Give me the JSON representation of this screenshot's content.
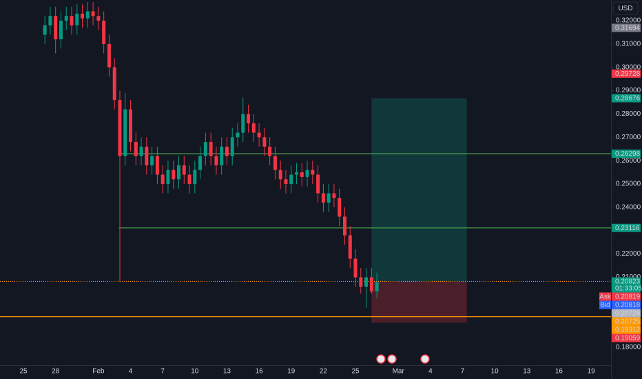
{
  "chart_data": {
    "type": "candlestick",
    "currency": "USD",
    "x": [
      2,
      2.5,
      3,
      3.5,
      4,
      4.5,
      5,
      5.5,
      6,
      6.5,
      7,
      7.5,
      8,
      8.5,
      9,
      9.5,
      10,
      10.5,
      11,
      11.5,
      12,
      12.5,
      13,
      13.5,
      14,
      14.5,
      15,
      15.5,
      16,
      16.5,
      17,
      17.5,
      18,
      18.5,
      19,
      19.5,
      20,
      20.5,
      21,
      21.5,
      22,
      22.5,
      23,
      23.5,
      24,
      24.5,
      25,
      25.5,
      26,
      26.5,
      27,
      27.5,
      28,
      28.5,
      29,
      29.5,
      30,
      30.5,
      31,
      31.5,
      32,
      32.5,
      33
    ],
    "open": [
      0.314,
      0.318,
      0.322,
      0.312,
      0.32,
      0.322,
      0.318,
      0.323,
      0.321,
      0.324,
      0.322,
      0.32,
      0.31,
      0.3,
      0.286,
      0.262,
      0.282,
      0.268,
      0.262,
      0.266,
      0.258,
      0.262,
      0.254,
      0.25,
      0.256,
      0.252,
      0.258,
      0.254,
      0.25,
      0.256,
      0.262,
      0.268,
      0.262,
      0.258,
      0.266,
      0.262,
      0.27,
      0.272,
      0.28,
      0.276,
      0.272,
      0.27,
      0.266,
      0.262,
      0.256,
      0.252,
      0.25,
      0.254,
      0.255,
      0.253,
      0.256,
      0.254,
      0.246,
      0.242,
      0.246,
      0.244,
      0.236,
      0.228,
      0.218,
      0.21,
      0.206,
      0.21,
      0.204
    ],
    "high": [
      0.322,
      0.326,
      0.326,
      0.324,
      0.326,
      0.326,
      0.327,
      0.327,
      0.328,
      0.328,
      0.326,
      0.324,
      0.314,
      0.304,
      0.29,
      0.289,
      0.286,
      0.272,
      0.27,
      0.27,
      0.266,
      0.266,
      0.258,
      0.26,
      0.26,
      0.262,
      0.262,
      0.258,
      0.26,
      0.266,
      0.272,
      0.272,
      0.266,
      0.27,
      0.27,
      0.274,
      0.276,
      0.287,
      0.284,
      0.28,
      0.276,
      0.274,
      0.27,
      0.266,
      0.26,
      0.256,
      0.258,
      0.259,
      0.259,
      0.26,
      0.26,
      0.258,
      0.25,
      0.25,
      0.25,
      0.248,
      0.24,
      0.232,
      0.222,
      0.214,
      0.214,
      0.214,
      0.212
    ],
    "low": [
      0.31,
      0.314,
      0.306,
      0.308,
      0.316,
      0.314,
      0.314,
      0.317,
      0.317,
      0.318,
      0.316,
      0.306,
      0.296,
      0.282,
      0.208,
      0.258,
      0.264,
      0.258,
      0.258,
      0.254,
      0.254,
      0.25,
      0.246,
      0.246,
      0.248,
      0.248,
      0.25,
      0.246,
      0.246,
      0.252,
      0.258,
      0.258,
      0.254,
      0.254,
      0.258,
      0.258,
      0.266,
      0.268,
      0.272,
      0.268,
      0.266,
      0.262,
      0.258,
      0.252,
      0.248,
      0.246,
      0.246,
      0.25,
      0.249,
      0.249,
      0.25,
      0.242,
      0.238,
      0.238,
      0.24,
      0.232,
      0.224,
      0.214,
      0.206,
      0.203,
      0.197,
      0.203,
      0.201
    ],
    "close": [
      0.318,
      0.322,
      0.312,
      0.32,
      0.322,
      0.318,
      0.323,
      0.321,
      0.324,
      0.322,
      0.32,
      0.31,
      0.3,
      0.286,
      0.262,
      0.282,
      0.268,
      0.262,
      0.266,
      0.258,
      0.262,
      0.254,
      0.25,
      0.256,
      0.252,
      0.258,
      0.254,
      0.25,
      0.256,
      0.262,
      0.268,
      0.262,
      0.258,
      0.266,
      0.262,
      0.27,
      0.272,
      0.28,
      0.276,
      0.272,
      0.27,
      0.266,
      0.262,
      0.256,
      0.252,
      0.25,
      0.254,
      0.255,
      0.253,
      0.256,
      0.254,
      0.246,
      0.242,
      0.246,
      0.244,
      0.236,
      0.228,
      0.218,
      0.21,
      0.206,
      0.21,
      0.204,
      0.208
    ],
    "up_color": "#089981",
    "down_color": "#f23645",
    "xlim": [
      -2.19,
      54.86
    ],
    "ylim": [
      0.17233,
      0.32886
    ],
    "xticks": [
      {
        "value": 0,
        "label": "25"
      },
      {
        "value": 3,
        "label": "28"
      },
      {
        "value": 7,
        "label": "Feb"
      },
      {
        "value": 10,
        "label": "4"
      },
      {
        "value": 13,
        "label": "7"
      },
      {
        "value": 16,
        "label": "10"
      },
      {
        "value": 19,
        "label": "13"
      },
      {
        "value": 22,
        "label": "16"
      },
      {
        "value": 25,
        "label": "19"
      },
      {
        "value": 28,
        "label": "22"
      },
      {
        "value": 31,
        "label": "25"
      },
      {
        "value": 35,
        "label": "Mar"
      },
      {
        "value": 38,
        "label": "4"
      },
      {
        "value": 41,
        "label": "7"
      },
      {
        "value": 44,
        "label": "10"
      },
      {
        "value": 47,
        "label": "13"
      },
      {
        "value": 50,
        "label": "16"
      },
      {
        "value": 53,
        "label": "19"
      }
    ],
    "yticks": [
      {
        "value": 0.32,
        "label": "0.32000"
      },
      {
        "value": 0.31,
        "label": "0.31000"
      },
      {
        "value": 0.3,
        "label": "0.30000"
      },
      {
        "value": 0.29,
        "label": "0.29000"
      },
      {
        "value": 0.28,
        "label": "0.28000"
      },
      {
        "value": 0.27,
        "label": "0.27000"
      },
      {
        "value": 0.26,
        "label": "0.26000"
      },
      {
        "value": 0.25,
        "label": "0.25000"
      },
      {
        "value": 0.24,
        "label": "0.24000"
      },
      {
        "value": 0.22,
        "label": "0.22000"
      },
      {
        "value": 0.21,
        "label": "0.21000"
      },
      {
        "value": 0.18,
        "label": "0.18000"
      }
    ],
    "hlines": [
      {
        "value": 0.26298,
        "color": "#4caf50",
        "start": 8.8,
        "style": "solid"
      },
      {
        "value": 0.23116,
        "color": "#4caf50",
        "start": 8.9,
        "style": "solid"
      },
      {
        "value": 0.20823,
        "color": "#ff9800",
        "start": -2.19,
        "style": "dotted"
      },
      {
        "value": 0.19312,
        "color": "#ff9800",
        "start": -2.19,
        "style": "solid"
      }
    ],
    "position": {
      "target": 0.28676,
      "entry": 0.20823,
      "stop": 0.19059,
      "start": 32.5,
      "end": 41.4,
      "profit_color": "rgba(8,153,129,0.25)",
      "loss_color": "rgba(242,54,69,0.25)"
    },
    "price_tags": [
      {
        "value": 0.31694,
        "color": "#787b86"
      },
      {
        "value": 0.29728,
        "color": "#f23645"
      },
      {
        "value": 0.28676,
        "color": "#089981"
      },
      {
        "value": 0.26298,
        "color": "#089981"
      },
      {
        "value": 0.23116,
        "color": "#089981"
      },
      {
        "value": 0.20823,
        "color": "#089981",
        "timer": "01:33:05"
      },
      {
        "name": "Ask",
        "value": 0.20819,
        "color": "#f23645"
      },
      {
        "name": "Bid",
        "value": 0.20818,
        "color": "#2962ff"
      },
      {
        "value": 0.20729,
        "color": "#b2b5be"
      },
      {
        "value": 0.20725,
        "color": "#ff9800"
      },
      {
        "value": 0.19312,
        "color": "#ff9800"
      },
      {
        "value": 0.19059,
        "color": "#f23645"
      }
    ]
  }
}
